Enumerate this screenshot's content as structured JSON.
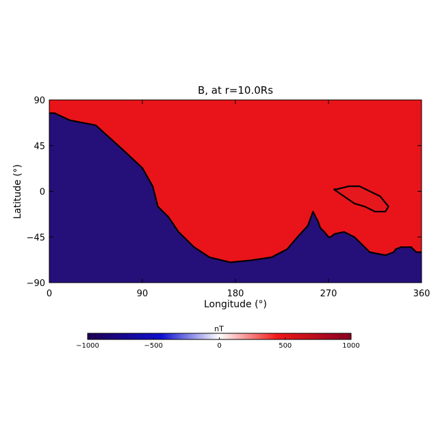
{
  "chart_data": {
    "type": "heatmap",
    "title": "B, at r=10.0Rs",
    "xlabel": "Longitude (°)",
    "ylabel": "Latitude (°)",
    "xlim": [
      0,
      360
    ],
    "ylim": [
      -90,
      90
    ],
    "xticks": [
      0,
      90,
      180,
      270,
      360
    ],
    "xtick_labels": [
      "0",
      "90",
      "180",
      "270",
      "360"
    ],
    "yticks": [
      90,
      45,
      0,
      -45,
      -90
    ],
    "ytick_labels": [
      "90",
      "45",
      "0",
      "−45",
      "−90"
    ],
    "colorbar": {
      "label": "nT",
      "range": [
        -1000,
        1000
      ],
      "ticks": [
        -1000,
        -500,
        0,
        500,
        1000
      ],
      "tick_labels": [
        "−1000",
        "−500",
        "0",
        "500",
        "1000"
      ],
      "colors": [
        "#1e0050",
        "#0a0ae0",
        "#ffffff",
        "#f02020",
        "#8a0022"
      ]
    },
    "neutral_line_color": "#000000",
    "polarity_regions": {
      "positive_color": "#e8141a",
      "negative_color": "#25107a"
    },
    "neutral_lines": [
      {
        "name": "main",
        "lon": [
          0,
          5,
          20,
          45,
          70,
          90,
          100,
          105,
          115,
          125,
          140,
          155,
          175,
          195,
          215,
          230,
          240,
          250,
          255,
          260,
          262,
          266,
          270,
          272,
          276,
          285,
          295,
          310,
          325,
          333,
          335,
          340,
          348,
          350,
          355,
          360
        ],
        "lat": [
          77,
          77,
          70,
          65,
          42,
          23,
          5,
          -15,
          -25,
          -40,
          -55,
          -65,
          -70,
          -68,
          -65,
          -57,
          -45,
          -34,
          -20,
          -30,
          -36,
          -40,
          -45,
          -45,
          -42,
          -40,
          -45,
          -60,
          -63,
          -60,
          -57,
          -55,
          -55,
          -55,
          -60,
          -60
        ]
      },
      {
        "name": "lobe",
        "lon": [
          275,
          285,
          295,
          305,
          315,
          325,
          328,
          320,
          310,
          300,
          290,
          282,
          278,
          275
        ],
        "lat": [
          2,
          -5,
          -12,
          -15,
          -20,
          -20,
          -15,
          -5,
          0,
          5,
          5,
          3,
          2,
          2
        ]
      }
    ]
  }
}
